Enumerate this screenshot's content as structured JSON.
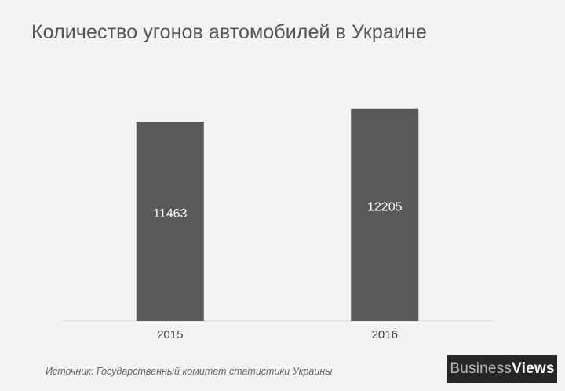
{
  "title": "Количество угонов автомобилей в Украине",
  "source": "Источник: Государственный комитет статистики Украины",
  "logo": {
    "part1": "Business",
    "part2": "Views"
  },
  "colors": {
    "bar": "#595959",
    "label": "#ffffff",
    "axis": "#d9d9d9",
    "tick_text": "#404040"
  },
  "chart_data": {
    "type": "bar",
    "title": "Количество угонов автомобилей в Украине",
    "categories": [
      "2015",
      "2016"
    ],
    "values": [
      11463,
      12205
    ],
    "xlabel": "",
    "ylabel": "",
    "ylim": [
      0,
      12600
    ],
    "grid": false,
    "data_labels": true
  }
}
